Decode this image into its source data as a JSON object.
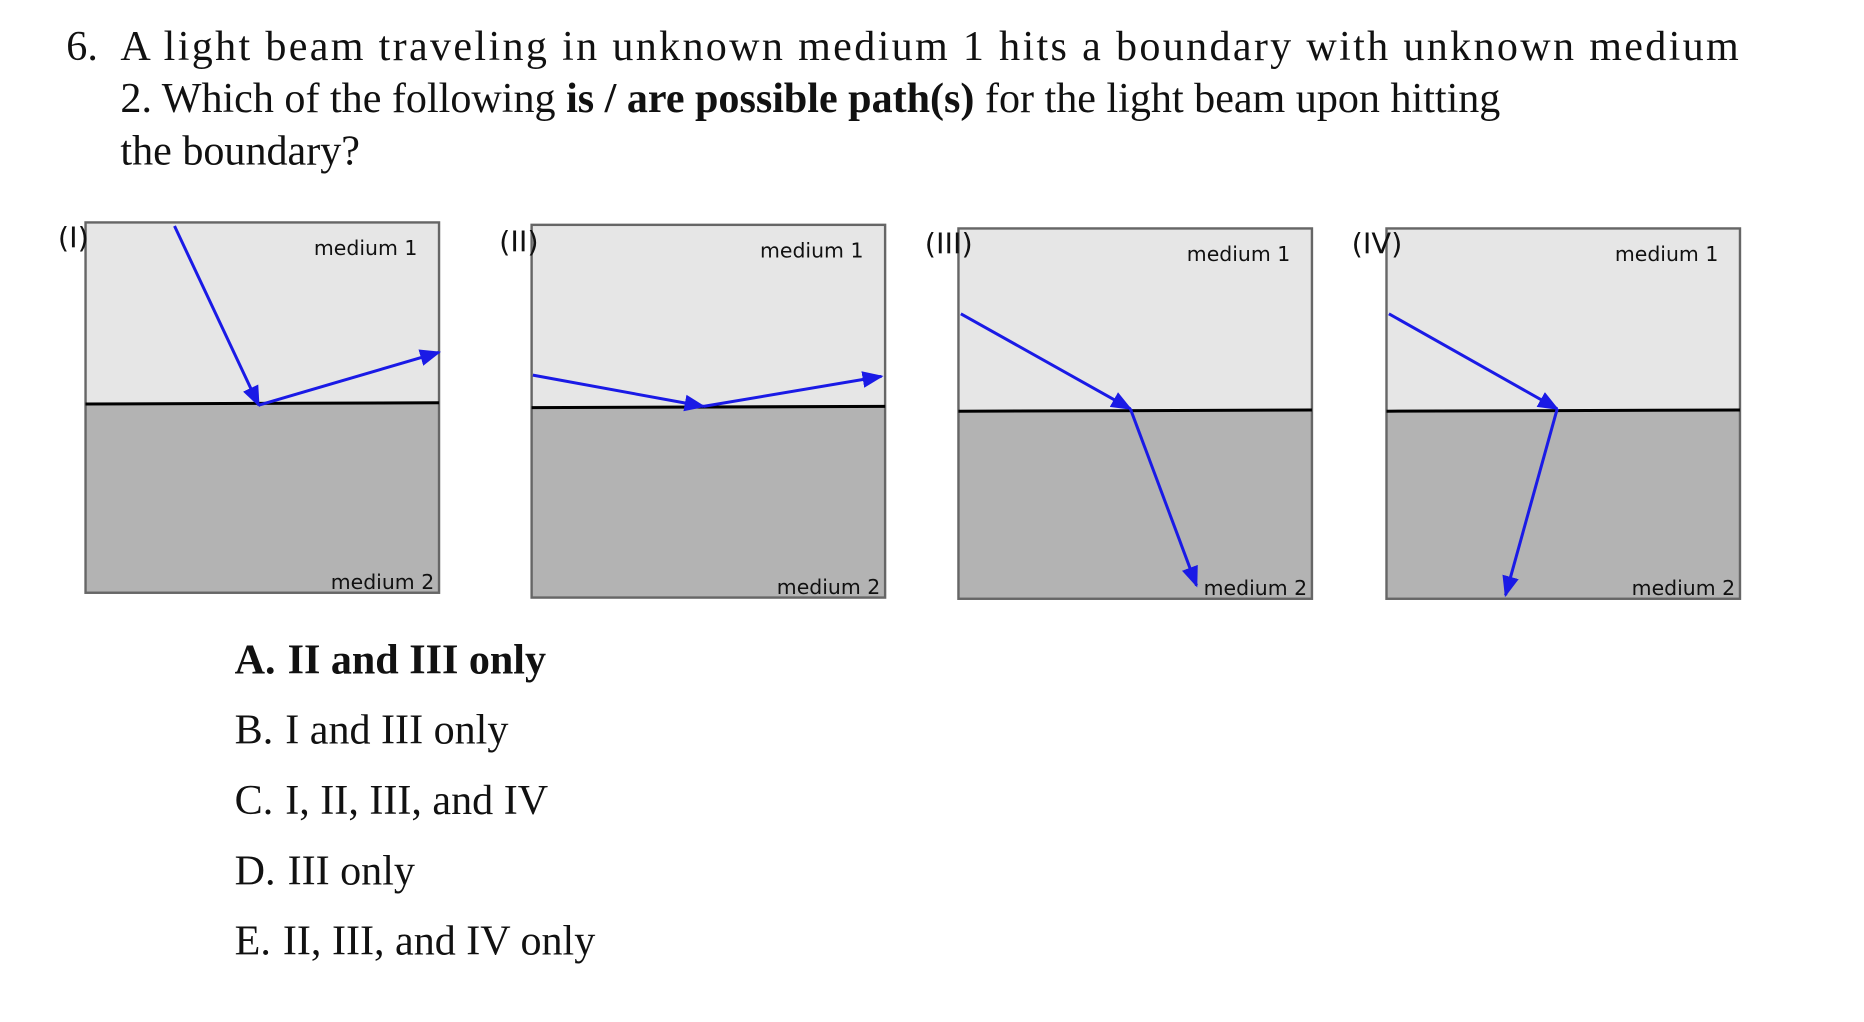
{
  "question": {
    "number": "6.",
    "line1": "A light beam traveling in unknown medium 1 hits a boundary with unknown medium",
    "line2_start": "2. Which of the following",
    "line2_bold": "is / are possible path(s)",
    "line2_end": "for the light beam upon hitting",
    "line3": "the boundary?"
  },
  "panels": [
    {
      "label": "(I)",
      "top": "medium 1",
      "bottom": "medium 2"
    },
    {
      "label": "(II)",
      "top": "medium 1",
      "bottom": "medium 2"
    },
    {
      "label": "(III)",
      "top": "medium 1",
      "bottom": "medium 2"
    },
    {
      "label": "(IV)",
      "top": "medium 1",
      "bottom": "medium 2"
    }
  ],
  "choices": [
    {
      "letter": "A.",
      "text": "II and III only"
    },
    {
      "letter": "B.",
      "text": "I and III only"
    },
    {
      "letter": "C.",
      "text": "I, II, III, and IV"
    },
    {
      "letter": "D.",
      "text": "III only"
    },
    {
      "letter": "E.",
      "text": "II, III, and IV only"
    }
  ]
}
